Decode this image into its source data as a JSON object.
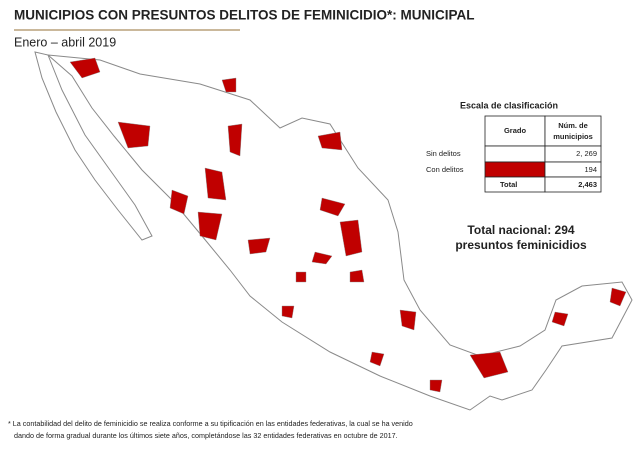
{
  "header": {
    "title": "MUNICIPIOS CON PRESUNTOS DELITOS DE FEMINICIDIO*: MUNICIPAL",
    "subtitle": "Enero – abril 2019"
  },
  "legend": {
    "title": "Escala de clasificación",
    "columns": [
      "Grado",
      [
        "Núm. de",
        "municipios"
      ]
    ],
    "rows": [
      [
        "Sin delitos",
        "2, 269"
      ],
      [
        "Con delitos",
        "194"
      ],
      [
        "Total",
        "2,463"
      ]
    ]
  },
  "total": [
    "Total nacional: 294",
    "presuntos feminicidios"
  ],
  "footnote": [
    "* La contabilidad del delito de feminicidio se realiza conforme a su tipificación en las entidades federativas, la cual se ha venido",
    "dando de forma gradual durante los últimos siete años, completándose las 32 entidades federativas en octubre de 2017."
  ]
}
